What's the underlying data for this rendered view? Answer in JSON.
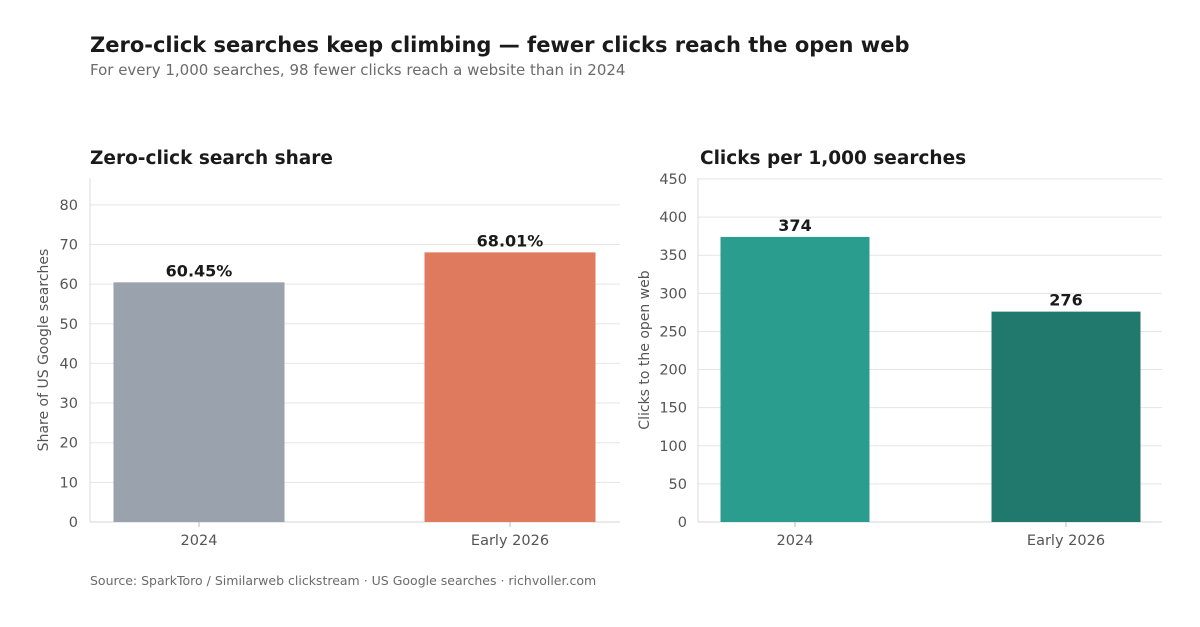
{
  "header": {
    "title": "Zero-click searches keep climbing — fewer clicks reach the open web",
    "subtitle": "For every 1,000 searches, 98 fewer clicks reach a website than in 2024"
  },
  "footer": {
    "source": "Source: SparkToro / Similarweb clickstream · US Google searches · richvoller.com"
  },
  "chart_data": [
    {
      "type": "bar",
      "title": "Zero-click search share",
      "xlabel": "",
      "ylabel": "Share of US Google searches",
      "categories": [
        "2024",
        "Early 2026"
      ],
      "values": [
        60.45,
        68.01
      ],
      "value_labels": [
        "60.45%",
        "68.01%"
      ],
      "colors": [
        "#9aa2ad",
        "#e07a5f"
      ],
      "ylim": [
        0,
        85
      ],
      "yticks": [
        0,
        10,
        20,
        30,
        40,
        50,
        60,
        70,
        80
      ],
      "grid": true
    },
    {
      "type": "bar",
      "title": "Clicks per 1,000 searches",
      "xlabel": "",
      "ylabel": "Clicks to the open web",
      "categories": [
        "2024",
        "Early 2026"
      ],
      "values": [
        374,
        276
      ],
      "value_labels": [
        "374",
        "276"
      ],
      "colors": [
        "#2a9d8f",
        "#21796d"
      ],
      "ylim": [
        0,
        450
      ],
      "yticks": [
        0,
        50,
        100,
        150,
        200,
        250,
        300,
        350,
        400,
        450
      ],
      "grid": true
    }
  ]
}
